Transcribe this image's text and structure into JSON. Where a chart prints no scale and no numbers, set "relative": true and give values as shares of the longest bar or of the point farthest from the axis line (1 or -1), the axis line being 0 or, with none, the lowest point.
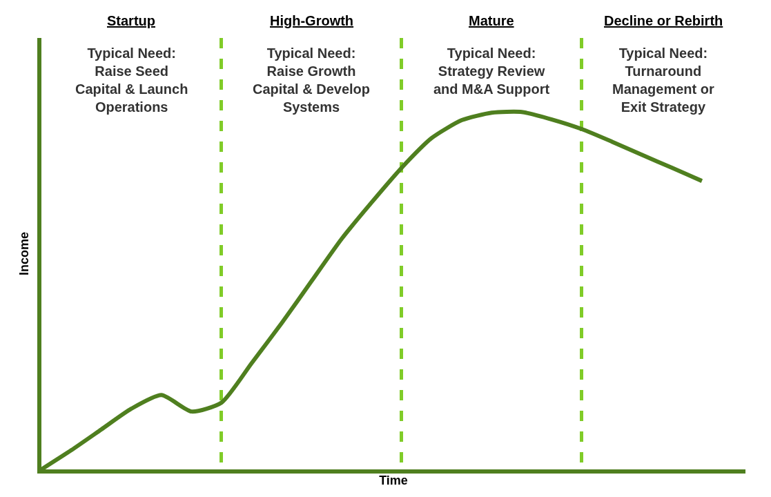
{
  "chart_data": {
    "type": "line",
    "relative": true,
    "xlabel": "Time",
    "ylabel": "Income",
    "color": "#4f7f1f",
    "line_style": "solid",
    "marker": "none",
    "legend": false,
    "categories": [
      null,
      null,
      null,
      null,
      null,
      null,
      null,
      null,
      null,
      null,
      null,
      null,
      null,
      null,
      null,
      null,
      null,
      null,
      null,
      null,
      null,
      null,
      null,
      null
    ],
    "values": [
      0,
      0.054,
      0.112,
      0.17,
      0.208,
      0.162,
      0.187,
      0.297,
      0.409,
      0.527,
      0.645,
      0.747,
      0.844,
      0.927,
      0.977,
      0.998,
      1,
      0.979,
      0.952,
      0.917,
      0.88,
      0.844,
      0.807,
      null
    ],
    "grid": "x",
    "annotations": [
      "Startup",
      "Typical Need:\nRaise Seed\nCapital & Launch\nOperations",
      "High-Growth",
      "Typical Need:\nRaise Growth\nCapital & Develop\nSystems",
      "Mature",
      "Typical Need:\nStrategy Review\nand M&A Support",
      "Decline or Rebirth",
      "Typical Need:\nTurnaround\nManagement or\nExit Strategy"
    ]
  }
}
